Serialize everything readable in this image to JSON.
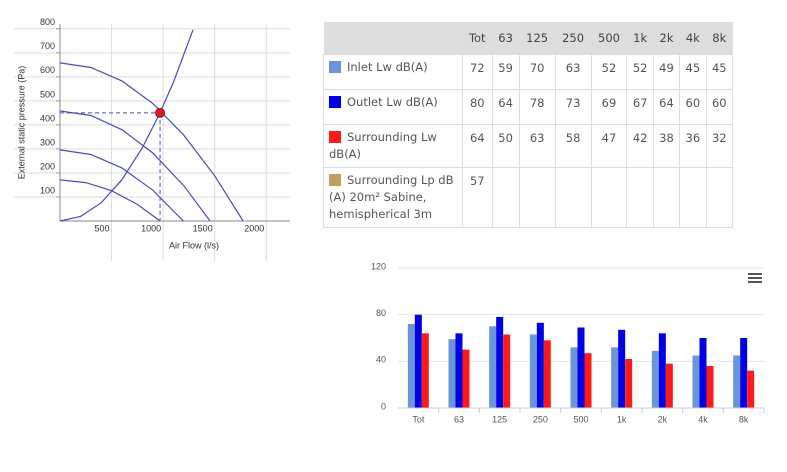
{
  "chart_data": [
    {
      "type": "line",
      "x_label": "Air Flow (l/s)",
      "y_label": "External static pressure (Pa)",
      "xlim": [
        0,
        2230
      ],
      "ylim": [
        0,
        820
      ],
      "xticks": [
        500,
        1000,
        1500,
        2000
      ],
      "yticks": [
        100,
        200,
        300,
        400,
        500,
        600,
        700,
        800
      ],
      "grid": true,
      "series": [
        {
          "color": "#4a4ac0",
          "x": [
            0,
            300,
            600,
            900,
            1200,
            1500,
            1775
          ],
          "values": [
            658,
            639,
            583,
            489,
            357,
            188,
            0
          ]
        },
        {
          "color": "#4a4ac0",
          "x": [
            0,
            300,
            600,
            900,
            1200,
            1455
          ],
          "values": [
            458,
            439,
            380,
            283,
            147,
            0
          ]
        },
        {
          "color": "#4a4ac0",
          "x": [
            0,
            300,
            600,
            900,
            1195
          ],
          "values": [
            296,
            277,
            221,
            128,
            0
          ]
        },
        {
          "color": "#4a4ac0",
          "x": [
            0,
            250,
            500,
            750,
            970
          ],
          "values": [
            171,
            160,
            126,
            69,
            0
          ]
        },
        {
          "color": "#4a4ac0",
          "x": [
            0,
            200,
            400,
            600,
            800,
            970,
            1100,
            1290
          ],
          "values": [
            0,
            19,
            76,
            172,
            306,
            450,
            578,
            796
          ]
        }
      ],
      "operating_point": {
        "x": 970,
        "y": 450,
        "color": "#d42020"
      }
    },
    {
      "type": "bar",
      "categories": [
        "Tot",
        "63",
        "125",
        "250",
        "500",
        "1k",
        "2k",
        "4k",
        "8k"
      ],
      "ylim": [
        0,
        120
      ],
      "yticks": [
        0,
        40,
        80,
        120
      ],
      "grid": true,
      "series": [
        {
          "color": "#6a95d8",
          "values": [
            72,
            59,
            70,
            63,
            52,
            52,
            49,
            45,
            45
          ]
        },
        {
          "color": "#0000e6",
          "values": [
            80,
            64,
            78,
            73,
            69,
            67,
            64,
            60,
            60
          ]
        },
        {
          "color": "#ff1a1a",
          "values": [
            64,
            50,
            63,
            58,
            47,
            42,
            38,
            36,
            32
          ]
        }
      ]
    }
  ],
  "table": {
    "columns": [
      "Tot",
      "63",
      "125",
      "250",
      "500",
      "1k",
      "2k",
      "4k",
      "8k"
    ],
    "rows": [
      {
        "label": "Inlet Lw dB(A)",
        "color": "#6a95d8",
        "values": [
          72,
          59,
          70,
          63,
          52,
          52,
          49,
          45,
          45
        ]
      },
      {
        "label": "Outlet Lw dB(A)",
        "color": "#0000e6",
        "values": [
          80,
          64,
          78,
          73,
          69,
          67,
          64,
          60,
          60
        ]
      },
      {
        "label": "Surrounding Lw dB(A)",
        "color": "#ff1a1a",
        "values": [
          64,
          50,
          63,
          58,
          47,
          42,
          38,
          36,
          32
        ]
      },
      {
        "label": "Surrounding Lp dB (A) 20m² Sabine, hemispherical 3m",
        "color": "#c0a060",
        "values": [
          57
        ]
      }
    ]
  }
}
